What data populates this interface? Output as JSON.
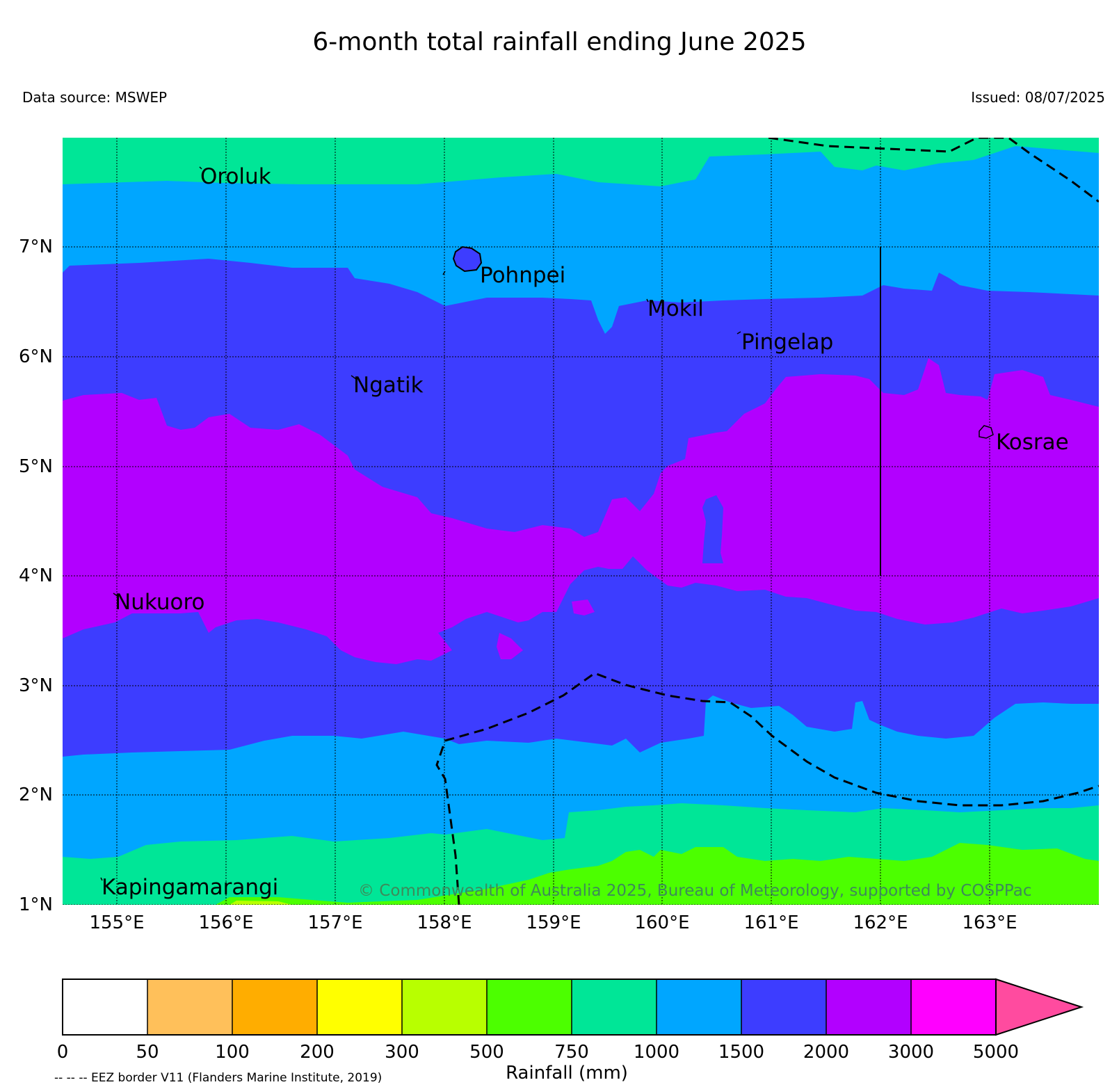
{
  "title": "6-month total rainfall ending June 2025",
  "data_source": "Data source: MSWEP",
  "issued": "Issued: 08/07/2025",
  "copyright": "© Commonwealth of Australia 2025, Bureau of Meteorology, supported by COSPPac",
  "latitude_labels": [
    "7°N",
    "6°N",
    "5°N",
    "4°N",
    "3°N",
    "2°N",
    "1°N"
  ],
  "longitude_labels": [
    "155°E",
    "156°E",
    "157°E",
    "158°E",
    "159°E",
    "160°E",
    "161°E",
    "162°E",
    "163°E"
  ],
  "places": [
    "Oroluk",
    "Pohnpei",
    "Mokil",
    "Pingelap",
    "Ngatik",
    "Kosrae",
    "Nukuoro",
    "Kapingamarangi"
  ],
  "colorbar": {
    "title": "Rainfall (mm)",
    "ticks": [
      "0",
      "50",
      "100",
      "200",
      "300",
      "500",
      "750",
      "1000",
      "1500",
      "2000",
      "3000",
      "5000"
    ],
    "colors": [
      "#ffffff",
      "#ffc05a",
      "#ffad00",
      "#ffff00",
      "#b8ff00",
      "#4cff00",
      "#00e697",
      "#00a6ff",
      "#3d3dff",
      "#b200ff",
      "#ff00ff",
      "#ff4b9f"
    ]
  },
  "eez_note": "-- -- -- EEZ border V11 (Flanders Marine Institute, 2019)"
}
